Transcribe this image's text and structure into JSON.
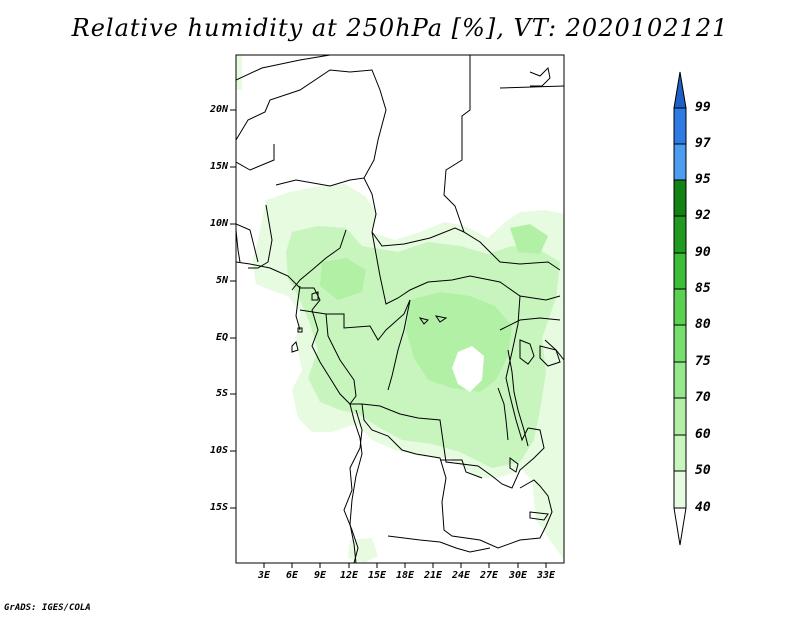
{
  "title": "Relative humidity at 250hPa [%], VT: 2020102121",
  "credit": "GrADS: IGES/COLA",
  "latitude_labels": [
    "20N",
    "15N",
    "10N",
    "5N",
    "EQ",
    "5S",
    "10S",
    "15S"
  ],
  "longitude_labels": [
    "3E",
    "6E",
    "9E",
    "12E",
    "15E",
    "18E",
    "21E",
    "24E",
    "27E",
    "30E",
    "33E"
  ],
  "colorbar": {
    "levels": [
      "40",
      "50",
      "60",
      "70",
      "75",
      "80",
      "85",
      "90",
      "92",
      "95",
      "97",
      "99"
    ],
    "colors": [
      "#ffffff",
      "#e6fbe0",
      "#c8f5be",
      "#b2f0a6",
      "#95e88a",
      "#77df6c",
      "#5bd152",
      "#3cbd37",
      "#209b1f",
      "#128212",
      "#4c9cf2",
      "#2e7be4",
      "#1f5fc8"
    ]
  },
  "field_colors": {
    "light": "#e6fbe0",
    "mid": "#c8f5be",
    "dark": "#b2f0a6"
  }
}
